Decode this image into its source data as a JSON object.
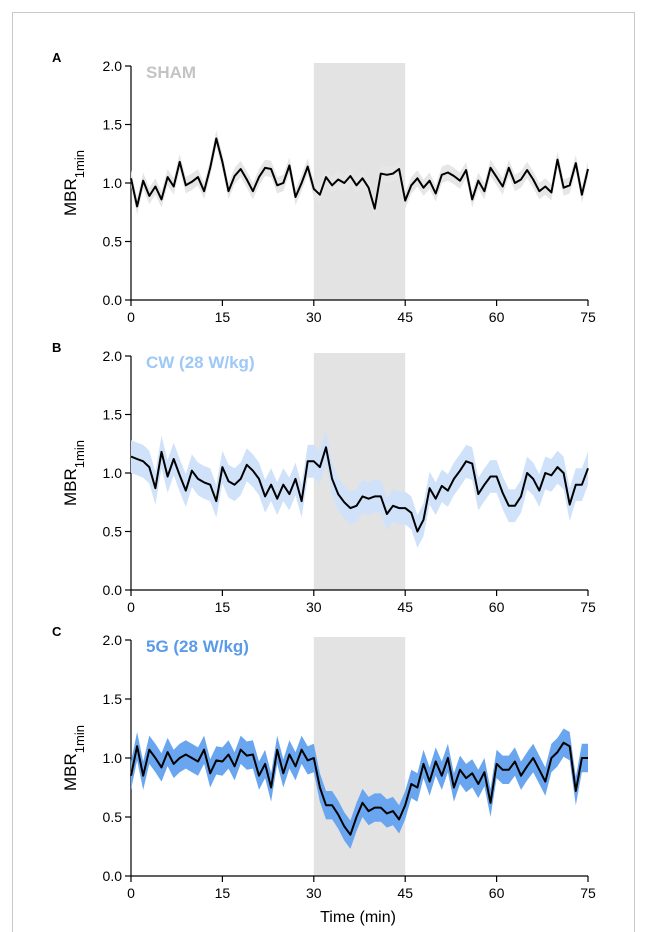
{
  "xlabel": "Time (min)",
  "colors": {
    "shade": "#e3e3e3",
    "line": "#000000"
  },
  "chart_data": [
    {
      "type": "line",
      "panel": "A",
      "title": "SHAM",
      "title_color": "#c4c4c4",
      "band_color": "#e6e6e6",
      "ylabel": "MBR",
      "ylabel_sub": "1min",
      "xlim": [
        0,
        75
      ],
      "ylim": [
        0,
        2
      ],
      "xticks": [
        "0",
        "15",
        "30",
        "45",
        "60",
        "75"
      ],
      "yticks": [
        "0.0",
        "0.5",
        "1.0",
        "1.5",
        "2.0"
      ],
      "exposure_window": [
        30,
        45
      ],
      "series": [
        {
          "x": [
            0,
            1,
            2,
            3,
            4,
            5,
            6,
            7,
            8,
            9,
            10,
            11,
            12,
            13,
            14,
            15,
            16,
            17,
            18,
            19,
            20,
            21,
            22,
            23,
            24,
            25,
            26,
            27,
            28,
            29,
            30,
            31,
            32,
            33,
            34,
            35,
            36,
            37,
            38,
            39,
            40,
            41,
            42,
            43,
            44,
            45,
            46,
            47,
            48,
            49,
            50,
            51,
            52,
            53,
            54,
            55,
            56,
            57,
            58,
            59,
            60,
            61,
            62,
            63,
            64,
            65,
            66,
            67,
            68,
            69,
            70,
            71,
            72,
            73,
            74,
            75
          ],
          "values": [
            1.04,
            0.8,
            1.02,
            0.89,
            0.97,
            0.86,
            1.05,
            0.97,
            1.18,
            0.98,
            1.01,
            1.05,
            0.93,
            1.13,
            1.38,
            1.18,
            0.93,
            1.06,
            1.12,
            1.03,
            0.93,
            1.05,
            1.13,
            1.12,
            0.98,
            1.0,
            1.15,
            0.88,
            1.0,
            1.14,
            0.95,
            0.9,
            1.05,
            0.98,
            1.03,
            1.0,
            1.06,
            0.98,
            1.04,
            0.96,
            0.78,
            1.08,
            1.07,
            1.08,
            1.12,
            0.85,
            0.98,
            1.04,
            0.96,
            1.02,
            0.91,
            1.07,
            1.09,
            1.06,
            1.02,
            1.11,
            0.86,
            1.02,
            0.93,
            1.13,
            1.05,
            0.97,
            1.13,
            1.0,
            1.03,
            1.11,
            1.03,
            0.93,
            0.97,
            0.92,
            1.2,
            0.96,
            0.98,
            1.17,
            0.9,
            1.12
          ],
          "band": [
            0.07,
            0.07,
            0.07,
            0.07,
            0.07,
            0.07,
            0.07,
            0.07,
            0.07,
            0.07,
            0.07,
            0.07,
            0.07,
            0.07,
            0.07,
            0.07,
            0.07,
            0.07,
            0.07,
            0.07,
            0.07,
            0.07,
            0.07,
            0.07,
            0.07,
            0.07,
            0.07,
            0.07,
            0.07,
            0.07,
            0.07,
            0.07,
            0.07,
            0.07,
            0.07,
            0.07,
            0.07,
            0.07,
            0.07,
            0.07,
            0.07,
            0.07,
            0.07,
            0.07,
            0.07,
            0.07,
            0.07,
            0.07,
            0.07,
            0.07,
            0.07,
            0.07,
            0.07,
            0.07,
            0.07,
            0.07,
            0.07,
            0.07,
            0.07,
            0.07,
            0.07,
            0.07,
            0.07,
            0.07,
            0.07,
            0.07,
            0.07,
            0.07,
            0.07,
            0.07,
            0.07,
            0.07,
            0.07,
            0.07,
            0.07,
            0.07
          ]
        }
      ]
    },
    {
      "type": "line",
      "panel": "B",
      "title": "CW (28 W/kg)",
      "title_color": "#9ec8f6",
      "band_color": "#cfe2fa",
      "ylabel": "MBR",
      "ylabel_sub": "1min",
      "xlim": [
        0,
        75
      ],
      "ylim": [
        0,
        2
      ],
      "xticks": [
        "0",
        "15",
        "30",
        "45",
        "60",
        "75"
      ],
      "yticks": [
        "0.0",
        "0.5",
        "1.0",
        "1.5",
        "2.0"
      ],
      "exposure_window": [
        30,
        45
      ],
      "series": [
        {
          "x": [
            0,
            1,
            2,
            3,
            4,
            5,
            6,
            7,
            8,
            9,
            10,
            11,
            12,
            13,
            14,
            15,
            16,
            17,
            18,
            19,
            20,
            21,
            22,
            23,
            24,
            25,
            26,
            27,
            28,
            29,
            30,
            31,
            32,
            33,
            34,
            35,
            36,
            37,
            38,
            39,
            40,
            41,
            42,
            43,
            44,
            45,
            46,
            47,
            48,
            49,
            50,
            51,
            52,
            53,
            54,
            55,
            56,
            57,
            58,
            59,
            60,
            61,
            62,
            63,
            64,
            65,
            66,
            67,
            68,
            69,
            70,
            71,
            72,
            73,
            74,
            75
          ],
          "values": [
            1.14,
            1.12,
            1.1,
            1.05,
            0.87,
            1.18,
            0.97,
            1.12,
            0.98,
            0.85,
            1.02,
            0.95,
            0.92,
            0.9,
            0.76,
            1.05,
            0.93,
            0.9,
            0.95,
            1.07,
            1.02,
            0.95,
            0.8,
            0.9,
            0.78,
            0.9,
            0.82,
            0.95,
            0.76,
            1.1,
            1.1,
            1.05,
            1.22,
            0.95,
            0.82,
            0.75,
            0.7,
            0.72,
            0.8,
            0.78,
            0.8,
            0.8,
            0.65,
            0.72,
            0.7,
            0.7,
            0.66,
            0.5,
            0.6,
            0.87,
            0.78,
            0.89,
            0.85,
            0.95,
            1.02,
            1.1,
            1.08,
            0.82,
            0.9,
            0.97,
            0.97,
            0.83,
            0.72,
            0.72,
            0.8,
            1.0,
            0.95,
            0.85,
            1.0,
            0.98,
            1.05,
            1.0,
            0.73,
            0.9,
            0.9,
            1.04
          ],
          "band": [
            0.14,
            0.14,
            0.14,
            0.14,
            0.14,
            0.14,
            0.14,
            0.14,
            0.14,
            0.14,
            0.14,
            0.14,
            0.14,
            0.14,
            0.14,
            0.14,
            0.14,
            0.14,
            0.14,
            0.14,
            0.14,
            0.14,
            0.14,
            0.14,
            0.14,
            0.14,
            0.14,
            0.14,
            0.14,
            0.14,
            0.14,
            0.14,
            0.14,
            0.14,
            0.14,
            0.14,
            0.14,
            0.14,
            0.14,
            0.14,
            0.14,
            0.14,
            0.14,
            0.14,
            0.14,
            0.14,
            0.14,
            0.14,
            0.14,
            0.14,
            0.14,
            0.14,
            0.14,
            0.14,
            0.14,
            0.14,
            0.14,
            0.14,
            0.14,
            0.14,
            0.14,
            0.14,
            0.14,
            0.14,
            0.14,
            0.14,
            0.14,
            0.14,
            0.14,
            0.14,
            0.14,
            0.14,
            0.14,
            0.14,
            0.14,
            0.14
          ]
        }
      ]
    },
    {
      "type": "line",
      "panel": "C",
      "title": "5G (28 W/kg)",
      "title_color": "#5a9be8",
      "band_color": "#6aa6ef",
      "ylabel": "MBR",
      "ylabel_sub": "1min",
      "xlabel": "Time (min)",
      "xlim": [
        0,
        75
      ],
      "ylim": [
        0,
        2
      ],
      "xticks": [
        "0",
        "15",
        "30",
        "45",
        "60",
        "75"
      ],
      "yticks": [
        "0.0",
        "0.5",
        "1.0",
        "1.5",
        "2.0"
      ],
      "exposure_window": [
        30,
        45
      ],
      "series": [
        {
          "x": [
            0,
            1,
            2,
            3,
            4,
            5,
            6,
            7,
            8,
            9,
            10,
            11,
            12,
            13,
            14,
            15,
            16,
            17,
            18,
            19,
            20,
            21,
            22,
            23,
            24,
            25,
            26,
            27,
            28,
            29,
            30,
            31,
            32,
            33,
            34,
            35,
            36,
            37,
            38,
            39,
            40,
            41,
            42,
            43,
            44,
            45,
            46,
            47,
            48,
            49,
            50,
            51,
            52,
            53,
            54,
            55,
            56,
            57,
            58,
            59,
            60,
            61,
            62,
            63,
            64,
            65,
            66,
            67,
            68,
            69,
            70,
            71,
            72,
            73,
            74,
            75
          ],
          "values": [
            0.85,
            1.1,
            0.85,
            1.07,
            1.0,
            0.92,
            1.05,
            0.95,
            1.0,
            1.03,
            1.0,
            0.97,
            1.07,
            0.87,
            0.98,
            0.97,
            1.03,
            0.93,
            1.07,
            1.02,
            1.03,
            0.85,
            0.95,
            0.75,
            1.07,
            0.87,
            1.03,
            0.93,
            1.07,
            0.98,
            1.0,
            0.75,
            0.6,
            0.6,
            0.52,
            0.42,
            0.35,
            0.5,
            0.62,
            0.55,
            0.58,
            0.58,
            0.53,
            0.55,
            0.48,
            0.6,
            0.78,
            0.75,
            0.95,
            0.8,
            0.97,
            0.85,
            1.0,
            0.75,
            0.9,
            0.83,
            0.87,
            0.78,
            0.88,
            0.62,
            0.95,
            0.9,
            0.9,
            0.97,
            0.85,
            0.93,
            1.0,
            0.9,
            0.8,
            1.0,
            1.05,
            1.13,
            1.1,
            0.72,
            1.0,
            1.0
          ],
          "band": [
            0.12,
            0.12,
            0.12,
            0.12,
            0.12,
            0.12,
            0.12,
            0.12,
            0.12,
            0.12,
            0.12,
            0.12,
            0.12,
            0.12,
            0.12,
            0.12,
            0.12,
            0.12,
            0.12,
            0.12,
            0.12,
            0.12,
            0.12,
            0.12,
            0.12,
            0.12,
            0.12,
            0.12,
            0.12,
            0.12,
            0.12,
            0.12,
            0.12,
            0.12,
            0.12,
            0.12,
            0.12,
            0.12,
            0.12,
            0.12,
            0.12,
            0.12,
            0.12,
            0.12,
            0.12,
            0.12,
            0.12,
            0.12,
            0.12,
            0.12,
            0.12,
            0.12,
            0.12,
            0.12,
            0.12,
            0.12,
            0.12,
            0.12,
            0.12,
            0.12,
            0.12,
            0.12,
            0.12,
            0.12,
            0.12,
            0.12,
            0.12,
            0.12,
            0.12,
            0.12,
            0.12,
            0.12,
            0.12,
            0.12,
            0.12,
            0.12
          ]
        }
      ]
    }
  ]
}
